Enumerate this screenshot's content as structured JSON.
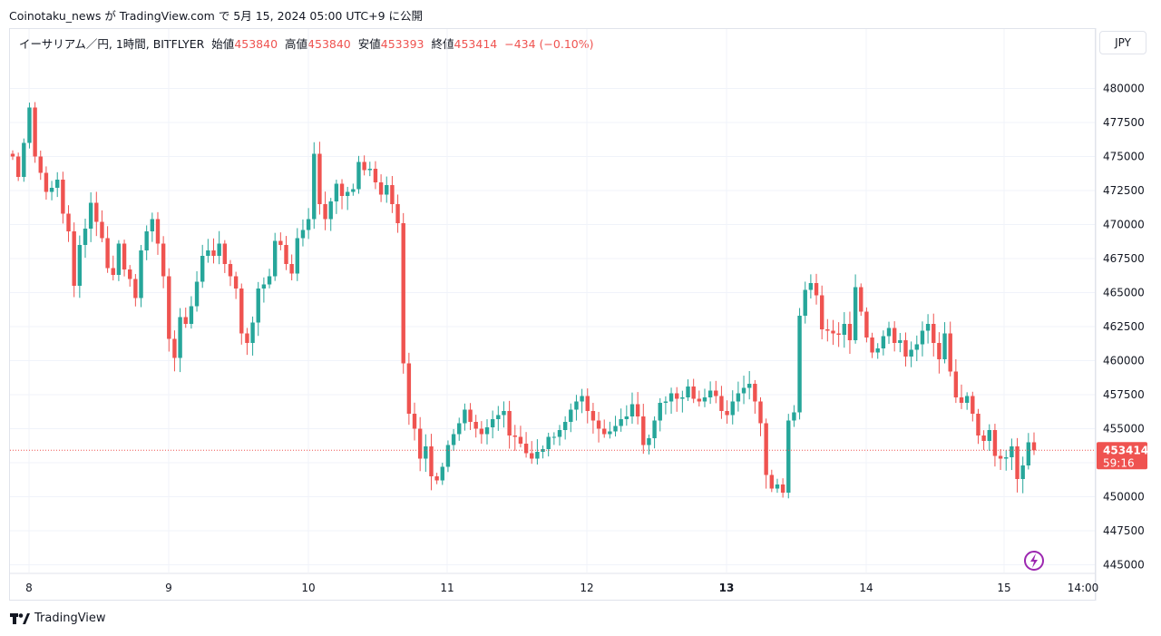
{
  "header": {
    "caption": "Coinotaku_news が TradingView.com で 5月 15, 2024 05:00 UTC+9 に公開"
  },
  "legend": {
    "symbol": "イーサリアム／円, 1時間, BITFLYER",
    "open_label": "始値",
    "open": "453840",
    "high_label": "高値",
    "high": "453840",
    "low_label": "安値",
    "low": "453393",
    "close_label": "終値",
    "close": "453414",
    "change": "−434 (−0.10%)"
  },
  "currency_button": "JPY",
  "price_tag": {
    "price": "453414",
    "countdown": "59:16"
  },
  "footer": {
    "brand": "TradingView"
  },
  "colors": {
    "up": "#26a69a",
    "down": "#ef5350",
    "grid": "#f0f3fa",
    "axis_text": "#131722"
  },
  "chart_data": {
    "type": "candlestick",
    "title": "イーサリアム／円, 1時間, BITFLYER",
    "ylim": [
      444500,
      482500
    ],
    "y_ticks": [
      480000,
      477500,
      475000,
      472500,
      470000,
      467500,
      465000,
      462500,
      460000,
      457500,
      455000,
      452500,
      450000,
      447500,
      445000
    ],
    "y_tick_labels": [
      "480000",
      "477500",
      "475000",
      "472500",
      "470000",
      "467500",
      "465000",
      "462500",
      "460000",
      "457500",
      "455000",
      "",
      "450000",
      "447500",
      "445000"
    ],
    "x_ticks": [
      "8",
      "9",
      "10",
      "11",
      "12",
      "13",
      "14",
      "15",
      "14:00"
    ],
    "bold_x_tick": "13",
    "last_price": 453414,
    "approx_hourly_closes": [
      475000,
      473500,
      476000,
      478600,
      475000,
      473800,
      472400,
      472700,
      473300,
      470800,
      469500,
      465500,
      468500,
      469700,
      471600,
      470200,
      469000,
      466800,
      466300,
      468600,
      466700,
      466000,
      464600,
      468100,
      469500,
      470400,
      468600,
      466200,
      461600,
      460200,
      463200,
      462700,
      464000,
      465800,
      467700,
      468100,
      467700,
      468600,
      467100,
      466200,
      465300,
      462000,
      461300,
      462800,
      465300,
      465600,
      466200,
      468800,
      468500,
      467100,
      466400,
      469000,
      469600,
      470400,
      475200,
      471500,
      470400,
      471700,
      473000,
      472100,
      472400,
      472600,
      474600,
      474000,
      474100,
      473100,
      472200,
      472900,
      471500,
      470100,
      459800,
      456100,
      455000,
      452800,
      453700,
      451500,
      451200,
      452200,
      453800,
      454600,
      455400,
      456400,
      455500,
      455000,
      454600,
      455100,
      455700,
      456000,
      456300,
      454500,
      454400,
      453900,
      453200,
      452800,
      453300,
      453500,
      454400,
      454400,
      454900,
      455500,
      456400,
      457000,
      457400,
      456300,
      455600,
      455000,
      454600,
      454800,
      455200,
      455700,
      455900,
      456800,
      455900,
      453800,
      454300,
      455600,
      456900,
      457000,
      457600,
      457200,
      457300,
      458100,
      457200,
      457000,
      457300,
      457800,
      457400,
      456300,
      456000,
      457000,
      457600,
      458000,
      458300,
      457000,
      455400,
      451600,
      450600,
      450900,
      450300,
      455600,
      456200,
      463300,
      465200,
      465700,
      464800,
      462300,
      462200,
      462000,
      461900,
      462700,
      461500,
      465400,
      463600,
      461700,
      460600,
      460900,
      461800,
      462400,
      461300,
      461500,
      460300,
      460800,
      461200,
      462200,
      462700,
      461300,
      460100,
      462000,
      459200,
      457300,
      456900,
      457400,
      456100,
      454500,
      454100,
      454900,
      453000,
      452800,
      452900,
      453700,
      451300,
      452300,
      454000,
      453414
    ]
  }
}
